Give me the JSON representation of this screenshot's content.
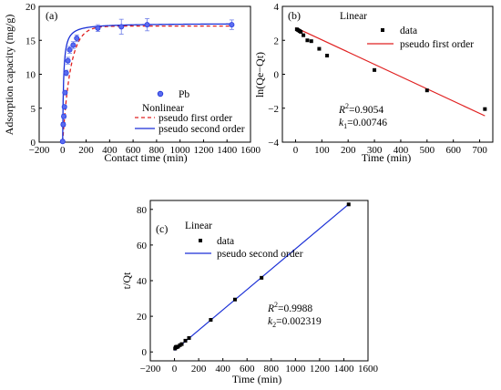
{
  "chart_data": [
    {
      "panel": "(a)",
      "type": "scatter",
      "xlabel": "Contact time (min)",
      "ylabel": "Adsorption capacity (mg/g)",
      "xlim": [
        -200,
        1600
      ],
      "ylim": [
        0,
        20
      ],
      "xticks": [
        -200,
        0,
        200,
        400,
        600,
        800,
        1000,
        1200,
        1400,
        1600
      ],
      "yticks": [
        0,
        5,
        10,
        15,
        20
      ],
      "legend_title": "Nonlinear",
      "legend_placement": "center-right",
      "series": [
        {
          "name": "Pb",
          "kind": "points",
          "color": "#2b3de0",
          "x": [
            0,
            5,
            10,
            15,
            20,
            30,
            45,
            60,
            90,
            120,
            300,
            500,
            720,
            1440
          ],
          "y": [
            0.1,
            2.6,
            3.8,
            5.2,
            7.3,
            10.2,
            12.0,
            13.6,
            14.3,
            15.3,
            16.8,
            17.0,
            17.3,
            17.3
          ],
          "yerr": [
            0.2,
            0.3,
            0.3,
            0.3,
            0.3,
            0.4,
            0.5,
            0.5,
            0.5,
            0.5,
            0.5,
            1.1,
            0.9,
            0.7
          ]
        },
        {
          "name": "pseudo first order",
          "kind": "line",
          "style": "dashed",
          "color": "#e02020",
          "qe": 17.1,
          "k1": 0.0148
        },
        {
          "name": "pseudo second order",
          "kind": "line",
          "style": "solid",
          "color": "#1a2fd6",
          "qe": 17.5,
          "k2": 0.0075
        }
      ]
    },
    {
      "panel": "(b)",
      "type": "scatter",
      "xlabel": "Time (min)",
      "ylabel": "ln(Qe−Qt)",
      "xlim": [
        -50,
        750
      ],
      "ylim": [
        -4,
        4
      ],
      "xticks": [
        0,
        100,
        200,
        300,
        400,
        500,
        600,
        700
      ],
      "yticks": [
        -4,
        -2,
        0,
        2,
        4
      ],
      "legend_title": "Linear",
      "legend_placement": "top-right",
      "annotation": {
        "r2": "=0.9054",
        "k": "=0.00746"
      },
      "series": [
        {
          "name": "data",
          "kind": "points",
          "color": "#000000",
          "x": [
            5,
            10,
            15,
            20,
            30,
            45,
            60,
            90,
            120,
            300,
            500,
            720
          ],
          "y": [
            2.65,
            2.6,
            2.55,
            2.5,
            2.3,
            2.0,
            1.95,
            1.5,
            1.1,
            0.25,
            -0.95,
            -2.05
          ]
        },
        {
          "name": "pseudo first order",
          "kind": "line",
          "color": "#e02020",
          "x": [
            0,
            720
          ],
          "y": [
            2.75,
            -2.45
          ]
        }
      ]
    },
    {
      "panel": "(c)",
      "type": "scatter",
      "xlabel": "Time (min)",
      "ylabel": "t/Qt",
      "xlim": [
        -200,
        1600
      ],
      "ylim": [
        -5,
        85
      ],
      "xticks": [
        -200,
        0,
        200,
        400,
        600,
        800,
        1000,
        1200,
        1400,
        1600
      ],
      "yticks": [
        0,
        20,
        40,
        60,
        80
      ],
      "legend_title": "Linear",
      "legend_placement": "top-left",
      "annotation": {
        "r2": "=0.9988",
        "k": "=0.002319"
      },
      "series": [
        {
          "name": "data",
          "kind": "points",
          "color": "#000000",
          "x": [
            5,
            10,
            15,
            20,
            30,
            45,
            60,
            90,
            120,
            300,
            500,
            720,
            1440
          ],
          "y": [
            1.9,
            2.6,
            2.9,
            2.7,
            3.0,
            3.8,
            4.4,
            6.3,
            7.8,
            18.0,
            29.4,
            41.6,
            82.8
          ]
        },
        {
          "name": "pseudo second order",
          "kind": "line",
          "color": "#1a2fd6",
          "x": [
            0,
            1440
          ],
          "y": [
            0.8,
            82.9
          ]
        }
      ]
    }
  ]
}
